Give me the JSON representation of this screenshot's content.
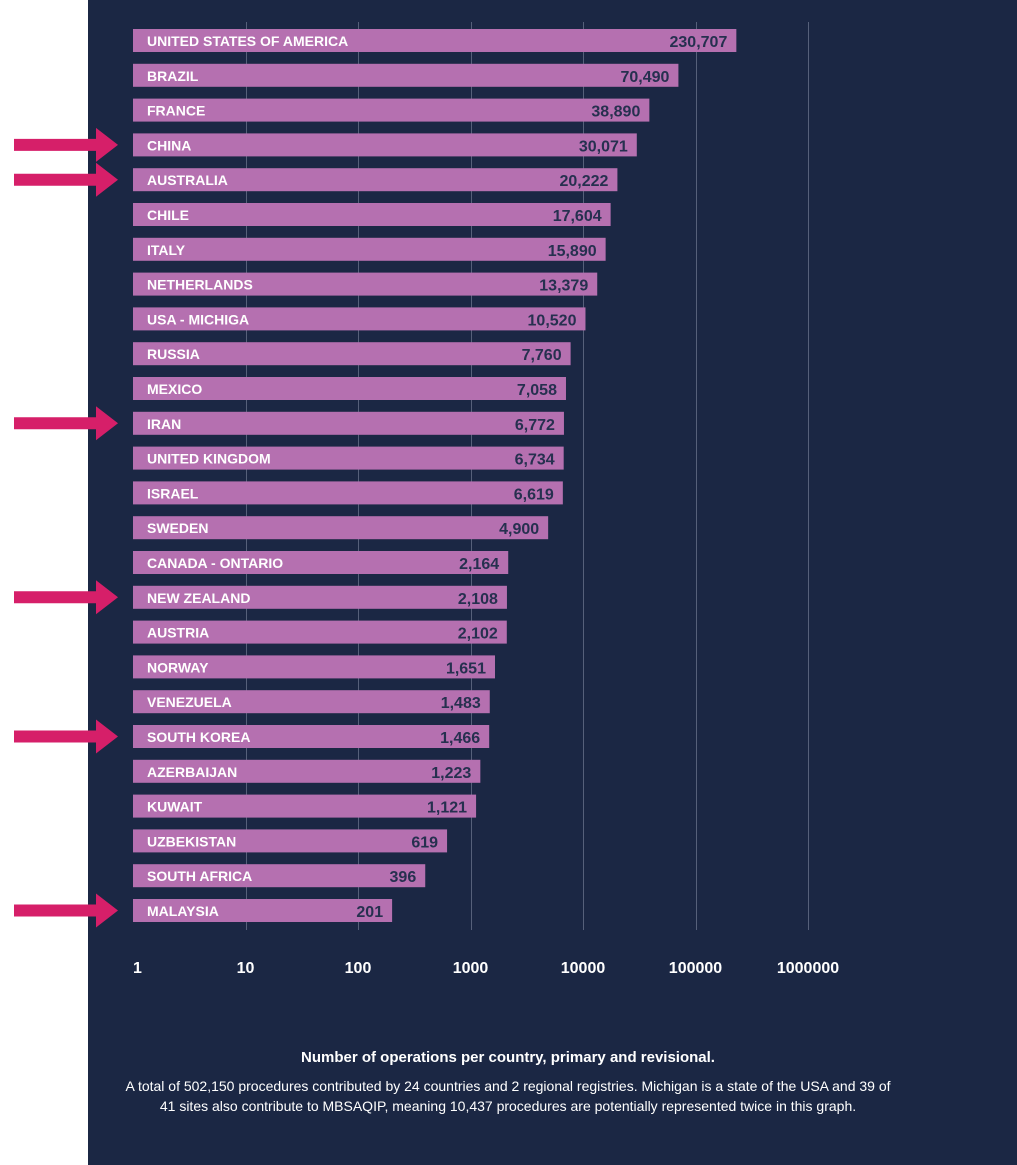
{
  "chart_data": {
    "type": "bar",
    "orientation": "horizontal",
    "x_scale": "log",
    "xlim": [
      1,
      1000000
    ],
    "x_ticks": [
      "1",
      "10",
      "100",
      "1000",
      "10000",
      "100000",
      "1000000"
    ],
    "grid": true,
    "categories": [
      "UNITED STATES OF AMERICA",
      "BRAZIL",
      "FRANCE",
      "CHINA",
      "AUSTRALIA",
      "CHILE",
      "ITALY",
      "NETHERLANDS",
      "USA - MICHIGA",
      "RUSSIA",
      "MEXICO",
      "IRAN",
      "UNITED KINGDOM",
      "ISRAEL",
      "SWEDEN",
      "CANADA - ONTARIO",
      "NEW ZEALAND",
      "AUSTRIA",
      "NORWAY",
      "VENEZUELA",
      "SOUTH KOREA",
      "AZERBAIJAN",
      "KUWAIT",
      "UZBEKISTAN",
      "SOUTH AFRICA",
      "MALAYSIA"
    ],
    "values": [
      230707,
      70490,
      38890,
      30071,
      20222,
      17604,
      15890,
      13379,
      10520,
      7760,
      7058,
      6772,
      6734,
      6619,
      4900,
      2164,
      2108,
      2102,
      1651,
      1483,
      1466,
      1223,
      1121,
      619,
      396,
      201
    ],
    "value_labels": [
      "230,707",
      "70,490",
      "38,890",
      "30,071",
      "20,222",
      "17,604",
      "15,890",
      "13,379",
      "10,520",
      "7,760",
      "7,058",
      "6,772",
      "6,734",
      "6,619",
      "4,900",
      "2,164",
      "2,108",
      "2,102",
      "1,651",
      "1,483",
      "1,466",
      "1,223",
      "1,121",
      "619",
      "396",
      "201"
    ],
    "highlighted_categories": [
      "CHINA",
      "AUSTRALIA",
      "IRAN",
      "NEW ZEALAND",
      "SOUTH KOREA",
      "MALAYSIA"
    ],
    "colors": {
      "bar": "#b570b0",
      "background": "#1b2744",
      "arrow": "#d61f69",
      "value_text": "#26304f"
    }
  },
  "caption": {
    "title": "Number of operations per country, primary and revisional.",
    "note": "A total of 502,150 procedures contributed by 24 countries and 2 regional registries. Michigan is a state of the USA and 39 of 41 sites also contribute to MBSAQIP, meaning 10,437 procedures are potentially represented twice in this graph."
  }
}
